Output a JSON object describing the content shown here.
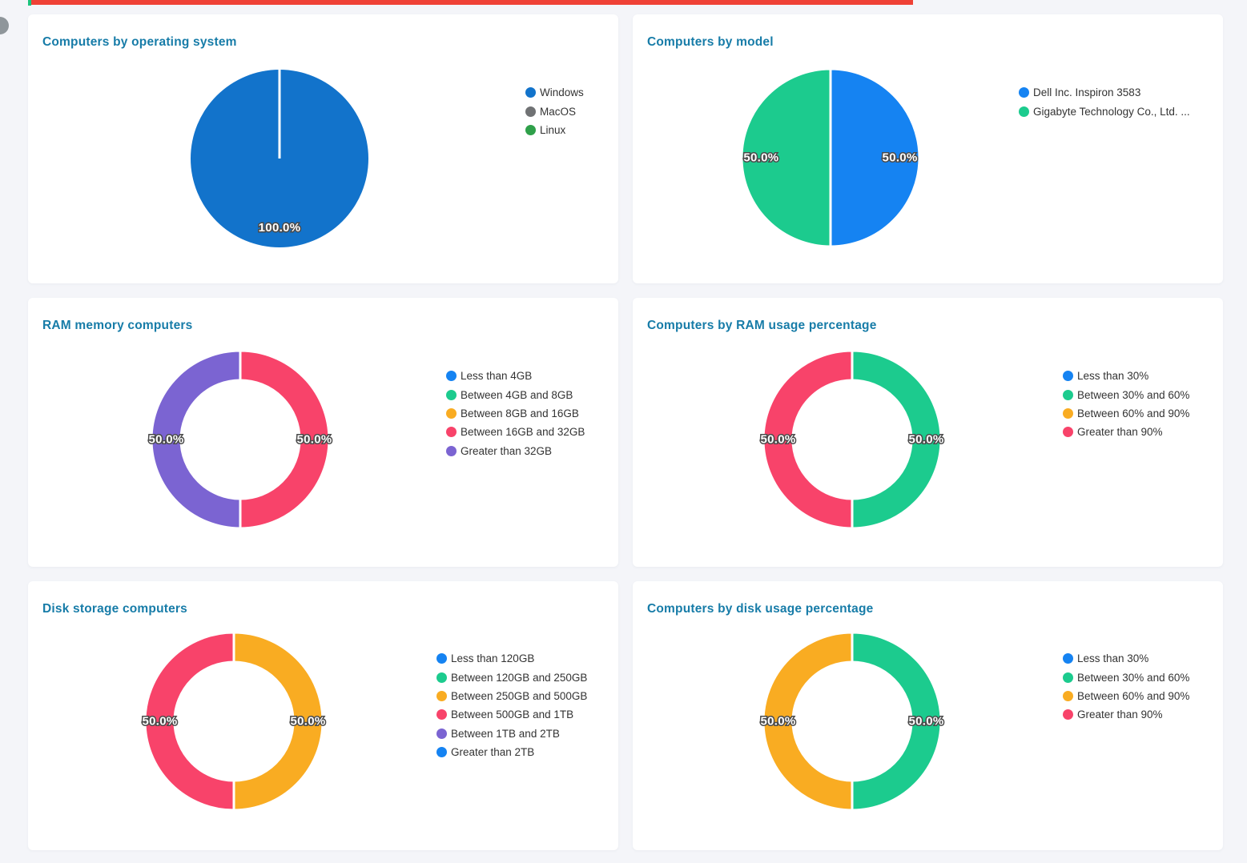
{
  "ui": {
    "page_bg": "#f4f5f9",
    "panel_bg": "#ffffff",
    "title_color": "#177ca8",
    "legend_text_color": "#333333",
    "slice_label_text_color": "#ffffff",
    "top_red_bar_color": "#ef4136",
    "top_green_tick_color": "#1bc47d",
    "side_handle_color": "#8f969b"
  },
  "chart_data": [
    {
      "type": "pie",
      "title": "Computers by operating system",
      "legend_position": "right",
      "legend": [
        {
          "label": "Windows",
          "color": "#1273cb"
        },
        {
          "label": "MacOS",
          "color": "#707274"
        },
        {
          "label": "Linux",
          "color": "#2fa04a"
        }
      ],
      "series": [
        {
          "name": "Windows",
          "value": 100.0,
          "label": "100.0%",
          "color": "#1273cb"
        }
      ]
    },
    {
      "type": "pie",
      "title": "Computers by model",
      "legend_position": "right",
      "legend": [
        {
          "label": "Dell Inc. Inspiron 3583",
          "color": "#1583f2"
        },
        {
          "label": "Gigabyte Technology Co., Ltd. ...",
          "color": "#1ccb8e"
        }
      ],
      "series": [
        {
          "name": "Dell Inc. Inspiron 3583",
          "value": 50.0,
          "label": "50.0%",
          "color": "#1583f2"
        },
        {
          "name": "Gigabyte Technology Co., Ltd. ...",
          "value": 50.0,
          "label": "50.0%",
          "color": "#1ccb8e"
        }
      ]
    },
    {
      "type": "donut",
      "title": "RAM memory computers",
      "legend_position": "right",
      "legend": [
        {
          "label": "Less than 4GB",
          "color": "#1583f2"
        },
        {
          "label": "Between 4GB and 8GB",
          "color": "#1ccb8e"
        },
        {
          "label": "Between 8GB and 16GB",
          "color": "#f9ac22"
        },
        {
          "label": "Between 16GB and 32GB",
          "color": "#f8436a"
        },
        {
          "label": "Greater than 32GB",
          "color": "#7b64d2"
        }
      ],
      "series": [
        {
          "name": "Between 16GB and 32GB",
          "value": 50.0,
          "label": "50.0%",
          "color": "#f8436a"
        },
        {
          "name": "Greater than 32GB",
          "value": 50.0,
          "label": "50.0%",
          "color": "#7b64d2"
        }
      ]
    },
    {
      "type": "donut",
      "title": "Computers by RAM usage percentage",
      "legend_position": "right",
      "legend": [
        {
          "label": "Less than 30%",
          "color": "#1583f2"
        },
        {
          "label": "Between 30% and 60%",
          "color": "#1ccb8e"
        },
        {
          "label": "Between 60% and 90%",
          "color": "#f9ac22"
        },
        {
          "label": "Greater than 90%",
          "color": "#f8436a"
        }
      ],
      "series": [
        {
          "name": "Between 30% and 60%",
          "value": 50.0,
          "label": "50.0%",
          "color": "#1ccb8e"
        },
        {
          "name": "Greater than 90%",
          "value": 50.0,
          "label": "50.0%",
          "color": "#f8436a"
        }
      ]
    },
    {
      "type": "donut",
      "title": "Disk storage computers",
      "legend_position": "right",
      "legend": [
        {
          "label": "Less than 120GB",
          "color": "#1583f2"
        },
        {
          "label": "Between 120GB and 250GB",
          "color": "#1ccb8e"
        },
        {
          "label": "Between 250GB and 500GB",
          "color": "#f9ac22"
        },
        {
          "label": "Between 500GB and 1TB",
          "color": "#f8436a"
        },
        {
          "label": "Between 1TB and 2TB",
          "color": "#7b64d2"
        },
        {
          "label": "Greater than 2TB",
          "color": "#1583f2"
        }
      ],
      "series": [
        {
          "name": "Between 250GB and 500GB",
          "value": 50.0,
          "label": "50.0%",
          "color": "#f9ac22"
        },
        {
          "name": "Between 500GB and 1TB",
          "value": 50.0,
          "label": "50.0%",
          "color": "#f8436a"
        }
      ]
    },
    {
      "type": "donut",
      "title": "Computers by disk usage percentage",
      "legend_position": "right",
      "legend": [
        {
          "label": "Less than 30%",
          "color": "#1583f2"
        },
        {
          "label": "Between 30% and 60%",
          "color": "#1ccb8e"
        },
        {
          "label": "Between 60% and 90%",
          "color": "#f9ac22"
        },
        {
          "label": "Greater than 90%",
          "color": "#f8436a"
        }
      ],
      "series": [
        {
          "name": "Between 30% and 60%",
          "value": 50.0,
          "label": "50.0%",
          "color": "#1ccb8e"
        },
        {
          "name": "Between 60% and 90%",
          "value": 50.0,
          "label": "50.0%",
          "color": "#f9ac22"
        }
      ]
    }
  ]
}
